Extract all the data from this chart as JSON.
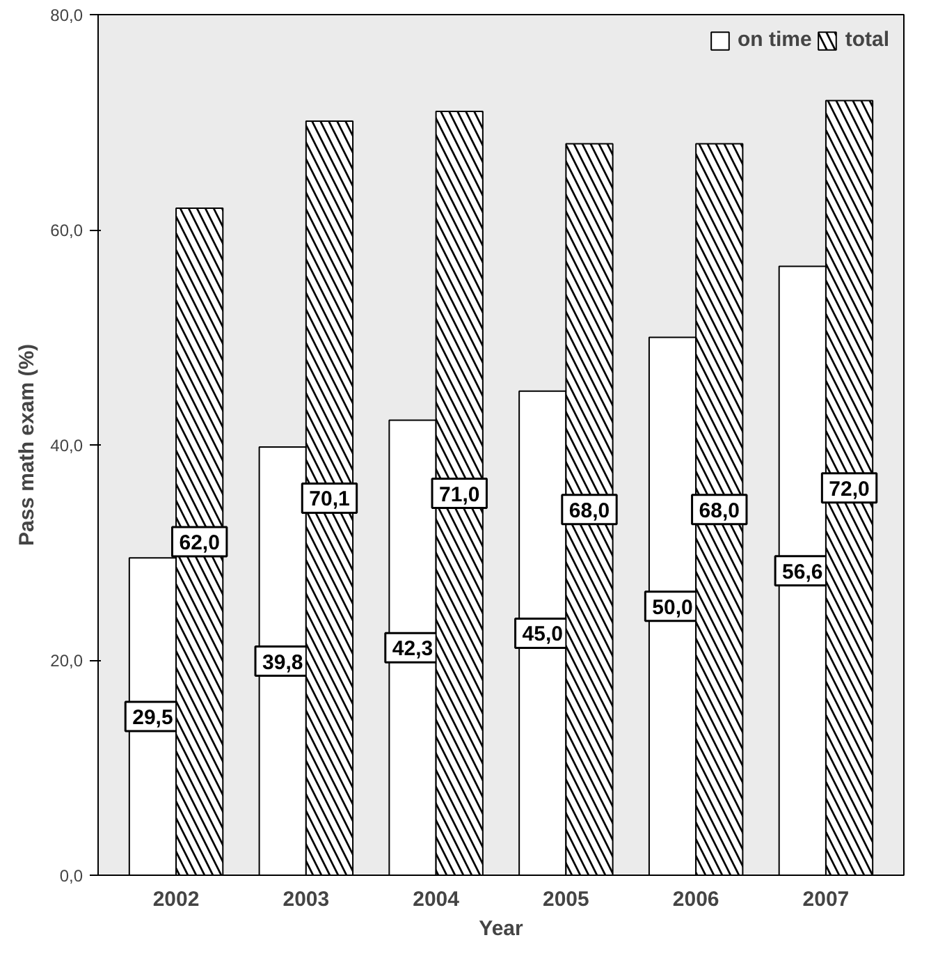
{
  "chart_data": {
    "type": "bar",
    "xlabel": "Year",
    "ylabel": "Pass math exam (%)",
    "categories": [
      "2002",
      "2003",
      "2004",
      "2005",
      "2006",
      "2007"
    ],
    "series": [
      {
        "name": "on time",
        "color": "#ffffff",
        "values": [
          29.5,
          39.8,
          42.3,
          45.0,
          50.0,
          56.6
        ],
        "value_labels": [
          "29,5",
          "39,8",
          "42,3",
          "45,0",
          "50,0",
          "56,6"
        ]
      },
      {
        "name": "total",
        "color": "#000000",
        "values": [
          62.0,
          70.1,
          71.0,
          68.0,
          68.0,
          72.0
        ],
        "value_labels": [
          "62,0",
          "70,1",
          "71,0",
          "68,0",
          "68,0",
          "72,0"
        ]
      }
    ],
    "ylim": [
      0,
      80
    ],
    "yticks": [
      {
        "value": 0,
        "label": "0,0"
      },
      {
        "value": 20,
        "label": "20,0"
      },
      {
        "value": 40,
        "label": "40,0"
      },
      {
        "value": 60,
        "label": "60,0"
      },
      {
        "value": 80,
        "label": "80,0"
      }
    ],
    "grid": false,
    "legend": "top right"
  }
}
